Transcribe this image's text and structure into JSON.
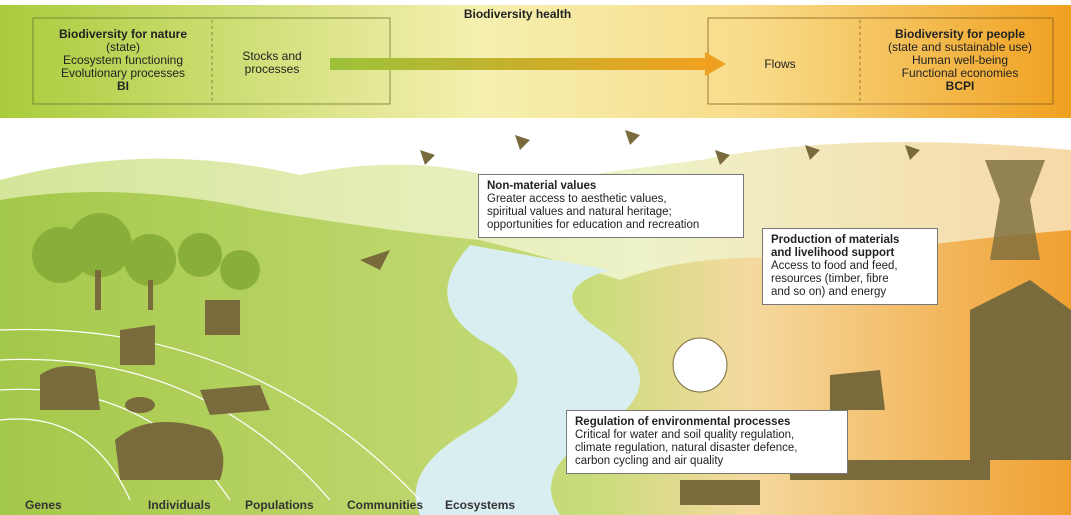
{
  "header": {
    "title": "Biodiversity health",
    "left": {
      "lines": [
        "Biodiversity for nature",
        "(state)",
        "Ecosystem functioning",
        "Evolutionary processes",
        "BI"
      ]
    },
    "stocks": {
      "lines": [
        "Stocks and",
        "processes"
      ]
    },
    "flows": "Flows",
    "right": {
      "lines": [
        "Biodiversity for people",
        "(state and sustainable use)",
        "Human well-being",
        "Functional economies",
        "BCPI"
      ]
    }
  },
  "boxes": {
    "non_material": {
      "title": "Non-material values",
      "lines": [
        "Greater access to aesthetic values,",
        "spiritual values and natural heritage;",
        "opportunities for education and recreation"
      ]
    },
    "production": {
      "title": [
        "Production of materials",
        "and livelihood support"
      ],
      "lines": [
        "Access to food and feed,",
        "resources (timber, fibre",
        "and so on) and energy"
      ]
    },
    "regulation": {
      "title": "Regulation of environmental processes",
      "lines": [
        "Critical for water and soil quality regulation,",
        "climate regulation, natural disaster defence,",
        "carbon cycling and air quality"
      ]
    }
  },
  "scale_labels": [
    "Genes",
    "Individuals",
    "Populations",
    "Communities",
    "Ecosystems"
  ]
}
